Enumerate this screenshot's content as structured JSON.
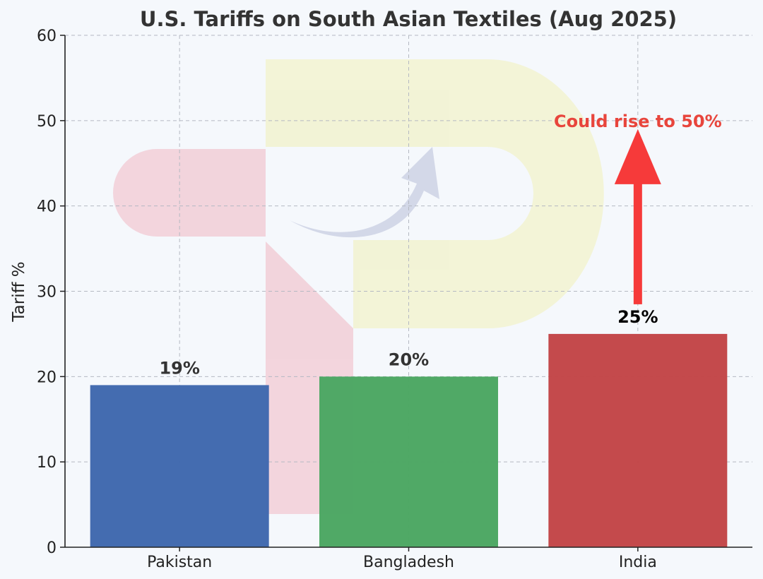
{
  "chart_data": {
    "type": "bar",
    "title": "U.S. Tariffs on South Asian Textiles (Aug 2025)",
    "xlabel": "",
    "ylabel": "Tariff %",
    "categories": [
      "Pakistan",
      "Bangladesh",
      "India"
    ],
    "values": [
      19,
      20,
      25
    ],
    "data_labels": [
      "19%",
      "20%",
      "25%"
    ],
    "colors": [
      "#4069ae",
      "#4ca763",
      "#c34648"
    ],
    "ylim": [
      0,
      60
    ],
    "yticks": [
      0,
      10,
      20,
      30,
      40,
      50,
      60
    ],
    "grid": true,
    "annotation": {
      "text": "Could rise to 50%",
      "category": "India",
      "from_value": 25,
      "to_value": 50,
      "color": "#f63a3a"
    }
  }
}
